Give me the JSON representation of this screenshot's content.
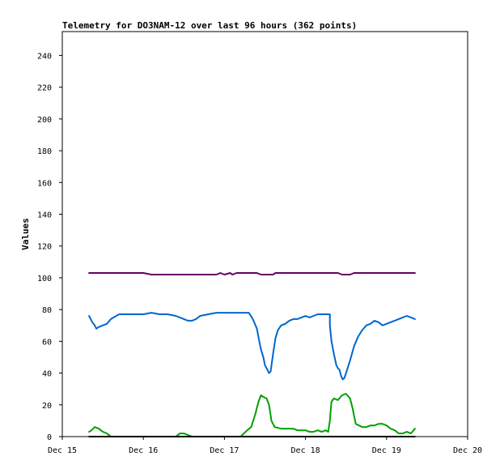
{
  "chart_data": {
    "type": "line",
    "title": "Telemetry for DO3NAM-12 over last 96 hours (362 points)",
    "ylabel": "Values",
    "xlabel": "",
    "xlim": [
      "Dec 15",
      "Dec 20"
    ],
    "ylim": [
      0,
      255
    ],
    "x_ticks": [
      "Dec 15",
      "Dec 16",
      "Dec 17",
      "Dec 18",
      "Dec 19",
      "Dec 20"
    ],
    "y_ticks": [
      0,
      20,
      40,
      60,
      80,
      100,
      120,
      140,
      160,
      180,
      200,
      220,
      240
    ],
    "grid": false,
    "legend": "none",
    "x_unit": "days since Dec 15 00:00",
    "series": [
      {
        "color": "#660066",
        "points": [
          [
            0.33,
            103
          ],
          [
            1.0,
            103
          ],
          [
            1.1,
            102
          ],
          [
            1.9,
            102
          ],
          [
            1.95,
            103
          ],
          [
            2.0,
            102
          ],
          [
            2.07,
            103
          ],
          [
            2.1,
            102
          ],
          [
            2.15,
            103
          ],
          [
            2.4,
            103
          ],
          [
            2.45,
            102
          ],
          [
            2.6,
            102
          ],
          [
            2.63,
            103
          ],
          [
            3.0,
            103
          ],
          [
            3.4,
            103
          ],
          [
            3.45,
            102
          ],
          [
            3.55,
            102
          ],
          [
            3.6,
            103
          ],
          [
            4.0,
            103
          ],
          [
            4.35,
            103
          ]
        ]
      },
      {
        "color": "#0066cc",
        "points": [
          [
            0.33,
            76
          ],
          [
            0.35,
            74
          ],
          [
            0.37,
            72
          ],
          [
            0.4,
            70
          ],
          [
            0.42,
            68
          ],
          [
            0.45,
            69
          ],
          [
            0.5,
            70
          ],
          [
            0.55,
            71
          ],
          [
            0.6,
            74
          ],
          [
            0.7,
            77
          ],
          [
            0.8,
            77
          ],
          [
            0.9,
            77
          ],
          [
            1.0,
            77
          ],
          [
            1.1,
            78
          ],
          [
            1.2,
            77
          ],
          [
            1.3,
            77
          ],
          [
            1.4,
            76
          ],
          [
            1.45,
            75
          ],
          [
            1.5,
            74
          ],
          [
            1.55,
            73
          ],
          [
            1.6,
            73
          ],
          [
            1.65,
            74
          ],
          [
            1.7,
            76
          ],
          [
            1.8,
            77
          ],
          [
            1.9,
            78
          ],
          [
            2.0,
            78
          ],
          [
            2.1,
            78
          ],
          [
            2.2,
            78
          ],
          [
            2.25,
            78
          ],
          [
            2.3,
            78
          ],
          [
            2.35,
            74
          ],
          [
            2.4,
            68
          ],
          [
            2.43,
            60
          ],
          [
            2.45,
            55
          ],
          [
            2.48,
            50
          ],
          [
            2.5,
            45
          ],
          [
            2.53,
            42
          ],
          [
            2.55,
            40
          ],
          [
            2.57,
            41
          ],
          [
            2.6,
            52
          ],
          [
            2.63,
            62
          ],
          [
            2.66,
            67
          ],
          [
            2.7,
            70
          ],
          [
            2.75,
            71
          ],
          [
            2.8,
            73
          ],
          [
            2.85,
            74
          ],
          [
            2.9,
            74
          ],
          [
            2.95,
            75
          ],
          [
            3.0,
            76
          ],
          [
            3.05,
            75
          ],
          [
            3.1,
            76
          ],
          [
            3.15,
            77
          ],
          [
            3.2,
            77
          ],
          [
            3.25,
            77
          ],
          [
            3.3,
            77
          ],
          [
            3.3,
            70
          ],
          [
            3.32,
            60
          ],
          [
            3.35,
            52
          ],
          [
            3.38,
            45
          ],
          [
            3.4,
            43
          ],
          [
            3.42,
            42
          ],
          [
            3.44,
            38
          ],
          [
            3.46,
            36
          ],
          [
            3.48,
            37
          ],
          [
            3.5,
            40
          ],
          [
            3.55,
            48
          ],
          [
            3.6,
            57
          ],
          [
            3.65,
            63
          ],
          [
            3.7,
            67
          ],
          [
            3.75,
            70
          ],
          [
            3.8,
            71
          ],
          [
            3.85,
            73
          ],
          [
            3.9,
            72
          ],
          [
            3.95,
            70
          ],
          [
            4.0,
            71
          ],
          [
            4.05,
            72
          ],
          [
            4.1,
            73
          ],
          [
            4.15,
            74
          ],
          [
            4.2,
            75
          ],
          [
            4.25,
            76
          ],
          [
            4.3,
            75
          ],
          [
            4.35,
            74
          ]
        ]
      },
      {
        "color": "#00a000",
        "points": [
          [
            0.33,
            3
          ],
          [
            0.36,
            4
          ],
          [
            0.4,
            6
          ],
          [
            0.45,
            5
          ],
          [
            0.5,
            3
          ],
          [
            0.55,
            2
          ],
          [
            0.6,
            0
          ],
          [
            1.4,
            0
          ],
          [
            1.45,
            2
          ],
          [
            1.5,
            2
          ],
          [
            1.55,
            1
          ],
          [
            1.6,
            0
          ],
          [
            2.2,
            0
          ],
          [
            2.28,
            4
          ],
          [
            2.33,
            6
          ],
          [
            2.38,
            14
          ],
          [
            2.42,
            22
          ],
          [
            2.45,
            26
          ],
          [
            2.48,
            25
          ],
          [
            2.52,
            24
          ],
          [
            2.55,
            20
          ],
          [
            2.58,
            10
          ],
          [
            2.62,
            6
          ],
          [
            2.7,
            5
          ],
          [
            2.8,
            5
          ],
          [
            2.85,
            5
          ],
          [
            2.9,
            4
          ],
          [
            3.0,
            4
          ],
          [
            3.05,
            3
          ],
          [
            3.1,
            3
          ],
          [
            3.15,
            4
          ],
          [
            3.2,
            3
          ],
          [
            3.25,
            4
          ],
          [
            3.28,
            3
          ],
          [
            3.3,
            10
          ],
          [
            3.32,
            22
          ],
          [
            3.35,
            24
          ],
          [
            3.4,
            23
          ],
          [
            3.45,
            26
          ],
          [
            3.5,
            27
          ],
          [
            3.55,
            24
          ],
          [
            3.58,
            18
          ],
          [
            3.62,
            8
          ],
          [
            3.7,
            6
          ],
          [
            3.75,
            6
          ],
          [
            3.8,
            7
          ],
          [
            3.85,
            7
          ],
          [
            3.9,
            8
          ],
          [
            3.95,
            8
          ],
          [
            4.0,
            7
          ],
          [
            4.05,
            5
          ],
          [
            4.1,
            4
          ],
          [
            4.15,
            2
          ],
          [
            4.2,
            2
          ],
          [
            4.25,
            3
          ],
          [
            4.3,
            2
          ],
          [
            4.35,
            5
          ]
        ]
      },
      {
        "color": "#000000",
        "points": [
          [
            0.33,
            0
          ],
          [
            4.35,
            0
          ]
        ]
      }
    ]
  }
}
